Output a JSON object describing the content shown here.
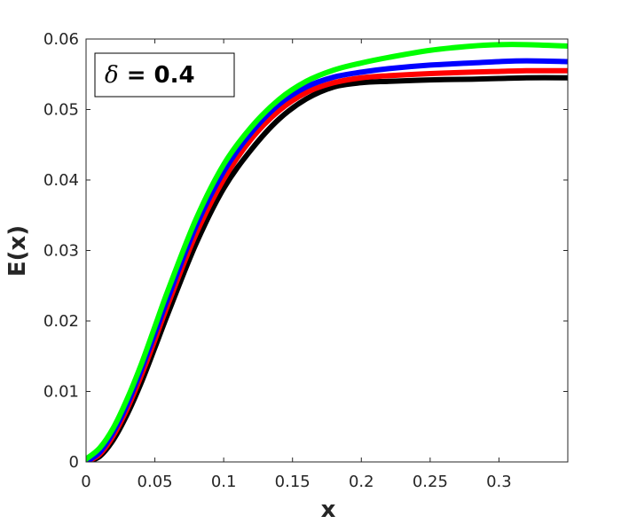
{
  "chart_data": {
    "type": "line",
    "xlabel": "x",
    "ylabel": "E(x)",
    "xlim": [
      0,
      0.35
    ],
    "ylim": [
      0,
      0.06
    ],
    "xticks": [
      0,
      0.05,
      0.1,
      0.15,
      0.2,
      0.25,
      0.3
    ],
    "xtick_labels": [
      "0",
      "0.05",
      "0.1",
      "0.15",
      "0.2",
      "0.25",
      "0.3"
    ],
    "yticks": [
      0,
      0.01,
      0.02,
      0.03,
      0.04,
      0.05,
      0.06
    ],
    "ytick_labels": [
      "0",
      "0.01",
      "0.02",
      "0.03",
      "0.04",
      "0.05",
      "0.06"
    ],
    "grid": false,
    "annotation": {
      "symbol": "δ",
      "text": " = 0.4",
      "placement": "top-left"
    },
    "x": [
      0,
      0.01,
      0.02,
      0.03,
      0.04,
      0.05,
      0.06,
      0.08,
      0.1,
      0.12,
      0.14,
      0.16,
      0.18,
      0.2,
      0.22,
      0.25,
      0.28,
      0.3,
      0.32,
      0.35
    ],
    "series": [
      {
        "color": "#000000",
        "values": [
          0.0,
          0.0008,
          0.0032,
          0.0068,
          0.0112,
          0.0162,
          0.0213,
          0.031,
          0.0388,
          0.0443,
          0.0486,
          0.0515,
          0.0532,
          0.0538,
          0.054,
          0.0542,
          0.0543,
          0.0544,
          0.0545,
          0.0545
        ]
      },
      {
        "color": "#ff0000",
        "values": [
          0.0,
          0.0011,
          0.0038,
          0.0076,
          0.0122,
          0.0173,
          0.0226,
          0.0324,
          0.0401,
          0.0458,
          0.0498,
          0.0524,
          0.0538,
          0.0545,
          0.0548,
          0.0551,
          0.0553,
          0.0554,
          0.0555,
          0.0555
        ]
      },
      {
        "color": "#0000ff",
        "values": [
          0.0,
          0.0014,
          0.0043,
          0.0082,
          0.013,
          0.0182,
          0.0235,
          0.0335,
          0.0412,
          0.0467,
          0.0507,
          0.0532,
          0.0546,
          0.0553,
          0.0558,
          0.0563,
          0.0566,
          0.0568,
          0.0569,
          0.0568
        ]
      },
      {
        "color": "#00ff00",
        "values": [
          0.0004,
          0.002,
          0.0049,
          0.009,
          0.0138,
          0.0192,
          0.0246,
          0.0345,
          0.0422,
          0.0475,
          0.0514,
          0.054,
          0.0556,
          0.0566,
          0.0574,
          0.0584,
          0.059,
          0.0592,
          0.0592,
          0.059
        ]
      }
    ]
  }
}
